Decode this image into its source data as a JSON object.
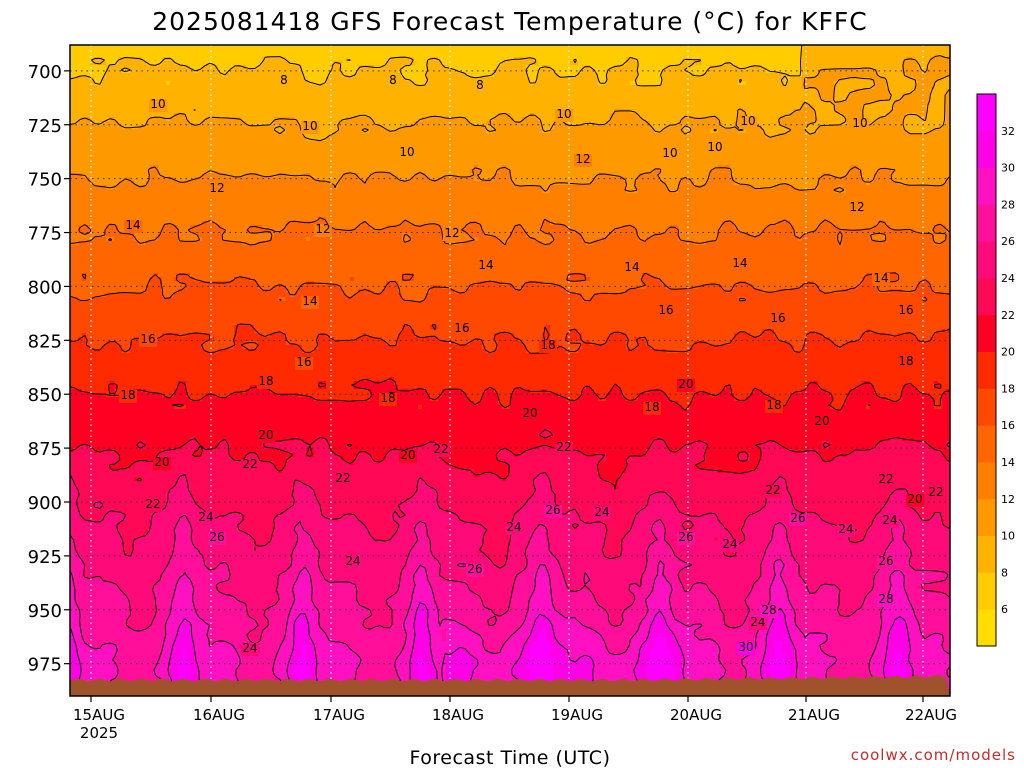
{
  "chart_data": {
    "type": "heatmap",
    "title": "2025081418 GFS Forecast Temperature (°C) for KFFC",
    "xlabel": "Forecast Time (UTC)",
    "ylabel": "",
    "credit": "coolwx.com/models",
    "x_ticks": [
      "15AUG",
      "16AUG",
      "17AUG",
      "18AUG",
      "19AUG",
      "20AUG",
      "21AUG",
      "22AUG"
    ],
    "x_year": "2025",
    "y_ticks": [
      700,
      725,
      750,
      775,
      800,
      825,
      850,
      875,
      900,
      925,
      950,
      975
    ],
    "y_range": [
      688,
      990
    ],
    "colorbar_ticks": [
      6,
      8,
      10,
      12,
      14,
      16,
      18,
      20,
      22,
      24,
      26,
      28,
      30,
      32
    ],
    "colorbar_bins": [
      {
        "min": 4,
        "max": 6,
        "color": "#ffdd00"
      },
      {
        "min": 6,
        "max": 8,
        "color": "#ffcc00"
      },
      {
        "min": 8,
        "max": 10,
        "color": "#ffb300"
      },
      {
        "min": 10,
        "max": 12,
        "color": "#ff9900"
      },
      {
        "min": 12,
        "max": 14,
        "color": "#ff7f00"
      },
      {
        "min": 14,
        "max": 16,
        "color": "#ff6600"
      },
      {
        "min": 16,
        "max": 18,
        "color": "#ff4800"
      },
      {
        "min": 18,
        "max": 20,
        "color": "#ff2a00"
      },
      {
        "min": 20,
        "max": 22,
        "color": "#ff0022"
      },
      {
        "min": 22,
        "max": 24,
        "color": "#ff0855"
      },
      {
        "min": 24,
        "max": 26,
        "color": "#ff0a78"
      },
      {
        "min": 26,
        "max": 28,
        "color": "#ff0f9a"
      },
      {
        "min": 28,
        "max": 30,
        "color": "#ff10c0"
      },
      {
        "min": 30,
        "max": 32,
        "color": "#ff00e6"
      },
      {
        "min": 32,
        "max": 34,
        "color": "#ff00ff"
      }
    ],
    "levels": [
      700,
      725,
      750,
      775,
      800,
      825,
      850,
      875,
      900,
      925,
      950,
      975
    ],
    "days": [
      "15AUG",
      "16AUG",
      "17AUG",
      "18AUG",
      "19AUG",
      "20AUG",
      "21AUG",
      "22AUG"
    ],
    "afternoon_temperature_profile": [
      [
        8,
        10,
        12,
        14,
        16,
        18,
        20,
        22,
        24,
        26,
        28,
        30
      ],
      [
        8,
        10,
        12,
        14,
        16,
        18,
        20,
        22,
        24,
        26,
        28,
        30
      ],
      [
        8,
        10,
        12,
        14,
        16,
        18,
        20,
        22,
        24,
        26,
        28,
        30
      ],
      [
        8,
        10,
        12,
        14,
        16,
        18,
        20,
        22,
        24,
        26,
        28,
        32
      ],
      [
        8,
        10,
        12,
        14,
        16,
        18,
        20,
        22,
        24,
        26,
        28,
        32
      ],
      [
        8,
        10,
        12,
        14,
        16,
        18,
        20,
        22,
        24,
        26,
        28,
        31
      ],
      [
        10,
        10,
        12,
        14,
        16,
        18,
        20,
        22,
        24,
        26,
        28,
        30
      ],
      [
        10,
        10,
        12,
        14,
        16,
        18,
        20,
        22,
        24,
        26,
        28,
        30
      ]
    ]
  }
}
